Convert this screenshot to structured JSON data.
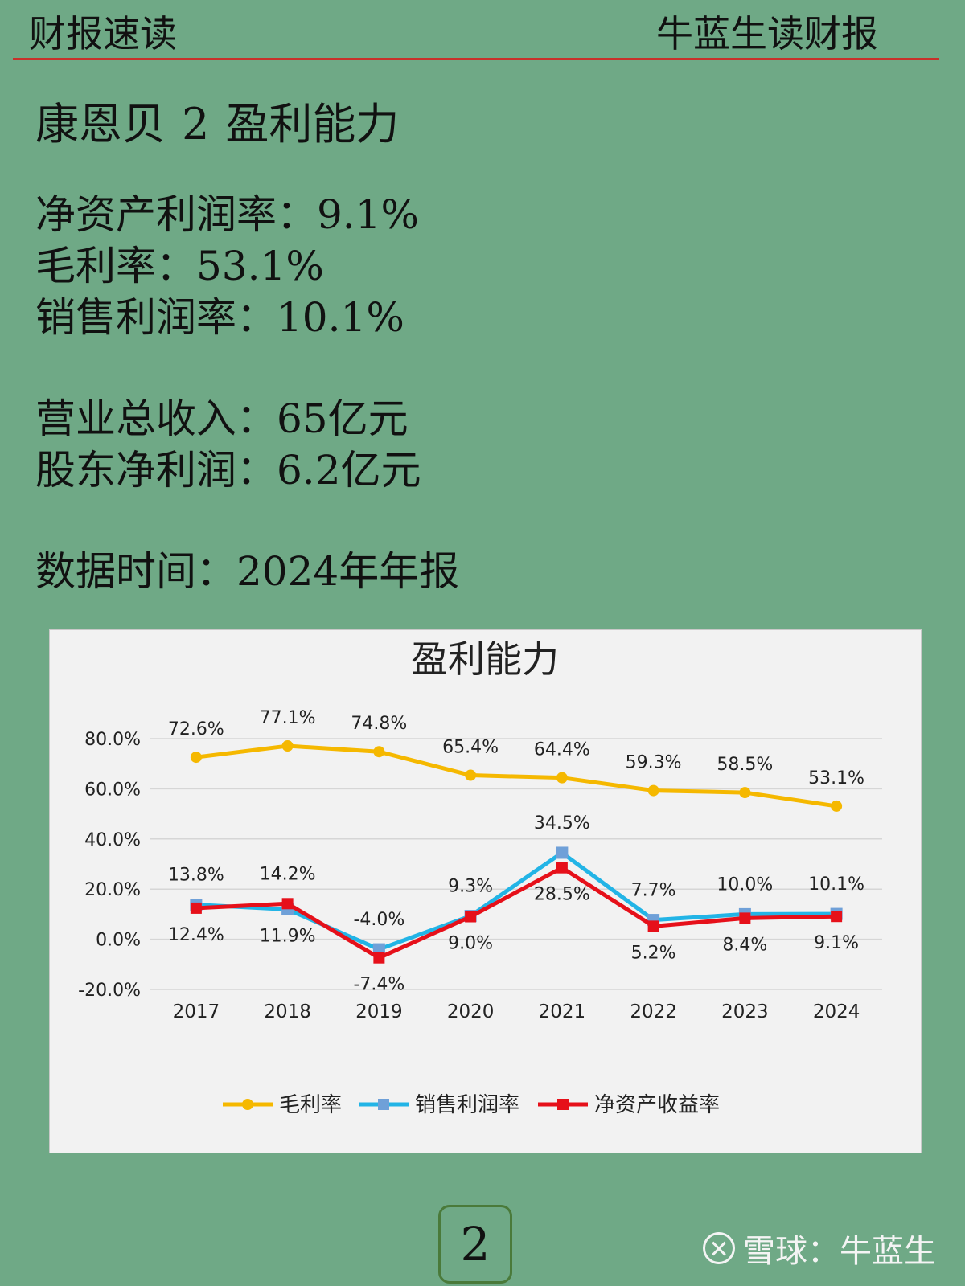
{
  "header": {
    "left": "财报速读",
    "right": "牛蓝生读财报"
  },
  "title": {
    "company": "康恩贝",
    "page_num": "2",
    "topic": "盈利能力"
  },
  "metrics": [
    {
      "label": "净资产利润率",
      "value": "9.1%"
    },
    {
      "label": "毛利率",
      "value": "53.1%"
    },
    {
      "label": "销售利润率",
      "value": "10.1%"
    }
  ],
  "metrics2": [
    {
      "label": "营业总收入",
      "value": "65亿元"
    },
    {
      "label": "股东净利润",
      "value": "6.2亿元"
    }
  ],
  "data_time": {
    "label": "数据时间",
    "value": "2024年年报"
  },
  "chart_data": {
    "type": "line",
    "title": "盈利能力",
    "categories": [
      "2017",
      "2018",
      "2019",
      "2020",
      "2021",
      "2022",
      "2023",
      "2024"
    ],
    "ylim": [
      -20,
      80
    ],
    "yticks": [
      "80.0%",
      "60.0%",
      "40.0%",
      "20.0%",
      "0.0%",
      "-20.0%"
    ],
    "grid": true,
    "legend": "bottom",
    "series": [
      {
        "name": "毛利率",
        "color": "#f5b800",
        "marker": "circle",
        "values": [
          72.6,
          77.1,
          74.8,
          65.4,
          64.4,
          59.3,
          58.5,
          53.1
        ],
        "labels": [
          "72.6%",
          "77.1%",
          "74.8%",
          "65.4%",
          "64.4%",
          "59.3%",
          "58.5%",
          "53.1%"
        ]
      },
      {
        "name": "销售利润率",
        "color": "#22b4e6",
        "marker": "square",
        "values": [
          13.8,
          11.9,
          -4.0,
          9.3,
          34.5,
          7.7,
          10.0,
          10.1
        ],
        "labels": [
          "13.8%",
          "11.9%",
          "-4.0%",
          "9.3%",
          "34.5%",
          "7.7%",
          "10.0%",
          "10.1%"
        ]
      },
      {
        "name": "净资产收益率",
        "color": "#e6101a",
        "marker": "square",
        "values": [
          12.4,
          14.2,
          -7.4,
          9.0,
          28.5,
          5.2,
          8.4,
          9.1
        ],
        "labels": [
          "12.4%",
          "14.2%",
          "-7.4%",
          "9.0%",
          "28.5%",
          "5.2%",
          "8.4%",
          "9.1%"
        ]
      }
    ]
  },
  "footer": {
    "page": "2",
    "watermark": "雪球：牛蓝生"
  }
}
